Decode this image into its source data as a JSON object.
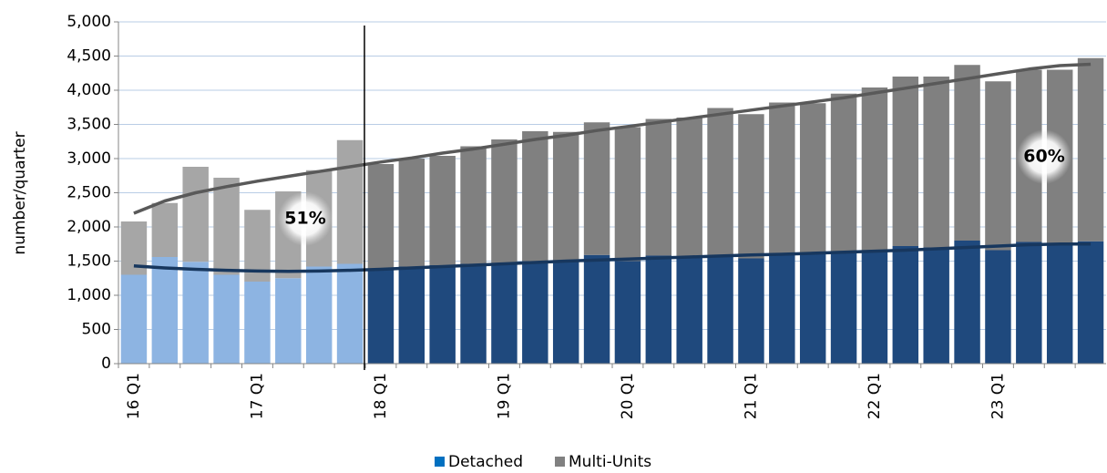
{
  "chart_data": {
    "type": "bar",
    "stacked": true,
    "y_label": "number/quarter",
    "categories": [
      "16 Q1",
      null,
      null,
      null,
      "17 Q1",
      null,
      null,
      null,
      "18 Q1",
      null,
      null,
      null,
      "19 Q1",
      null,
      null,
      null,
      "20 Q1",
      null,
      null,
      null,
      "21 Q1",
      null,
      null,
      null,
      "22 Q1",
      null,
      null,
      null,
      "23 Q1",
      null,
      null,
      null
    ],
    "series": [
      {
        "name": "Detached",
        "color": "#0070c0",
        "colors": [
          "#8db4e2",
          "#8db4e2",
          "#8db4e2",
          "#8db4e2",
          "#8db4e2",
          "#8db4e2",
          "#8db4e2",
          "#8db4e2",
          "#1f497d",
          "#1f497d",
          "#1f497d",
          "#1f497d",
          "#1f497d",
          "#1f497d",
          "#1f497d",
          "#1f497d",
          "#1f497d",
          "#1f497d",
          "#1f497d",
          "#1f497d",
          "#1f497d",
          "#1f497d",
          "#1f497d",
          "#1f497d",
          "#1f497d",
          "#1f497d",
          "#1f497d",
          "#1f497d",
          "#1f497d",
          "#1f497d",
          "#1f497d",
          "#1f497d"
        ],
        "values": [
          1300,
          1560,
          1490,
          1300,
          1200,
          1250,
          1420,
          1460,
          1380,
          1420,
          1440,
          1460,
          1470,
          1500,
          1510,
          1590,
          1500,
          1580,
          1560,
          1590,
          1540,
          1600,
          1620,
          1640,
          1650,
          1720,
          1700,
          1800,
          1660,
          1780,
          1750,
          1790
        ]
      },
      {
        "name": "Multi-Units",
        "color": "#808080",
        "colors": [
          "#a6a6a6",
          "#a6a6a6",
          "#a6a6a6",
          "#a6a6a6",
          "#a6a6a6",
          "#a6a6a6",
          "#a6a6a6",
          "#a6a6a6",
          "#808080",
          "#808080",
          "#808080",
          "#808080",
          "#808080",
          "#808080",
          "#808080",
          "#808080",
          "#808080",
          "#808080",
          "#808080",
          "#808080",
          "#808080",
          "#808080",
          "#808080",
          "#808080",
          "#808080",
          "#808080",
          "#808080",
          "#808080",
          "#808080",
          "#808080",
          "#808080",
          "#808080"
        ],
        "values": [
          780,
          790,
          1390,
          1420,
          1050,
          1270,
          1410,
          1810,
          1540,
          1580,
          1600,
          1720,
          1810,
          1900,
          1880,
          1940,
          1960,
          2000,
          2040,
          2150,
          2110,
          2220,
          2190,
          2310,
          2390,
          2480,
          2500,
          2570,
          2470,
          2520,
          2550,
          2680
        ]
      }
    ],
    "trendlines": [
      {
        "color": "#595959",
        "values": [
          2200,
          2380,
          2500,
          2590,
          2670,
          2740,
          2810,
          2880,
          2950,
          3010,
          3080,
          3140,
          3210,
          3280,
          3340,
          3410,
          3470,
          3530,
          3590,
          3650,
          3710,
          3770,
          3830,
          3890,
          3960,
          4030,
          4100,
          4170,
          4240,
          4310,
          4360,
          4380
        ]
      },
      {
        "color": "#17375e",
        "values": [
          1430,
          1400,
          1380,
          1365,
          1355,
          1350,
          1355,
          1365,
          1380,
          1400,
          1420,
          1440,
          1460,
          1480,
          1500,
          1515,
          1530,
          1545,
          1560,
          1575,
          1590,
          1600,
          1615,
          1630,
          1645,
          1660,
          1680,
          1700,
          1720,
          1740,
          1750,
          1750
        ]
      }
    ],
    "annotations": [
      "51%",
      "60%"
    ],
    "ylim": [
      0,
      5000
    ],
    "yticks": [
      0,
      500,
      {
        "value": 1000,
        "label": "1,000"
      },
      {
        "value": 1500,
        "label": "1,500"
      },
      {
        "value": 2000,
        "label": "2,000"
      },
      {
        "value": 2500,
        "label": "2,500"
      },
      {
        "value": 3000,
        "label": "3,000"
      },
      {
        "value": 3500,
        "label": "3,500"
      },
      {
        "value": 4000,
        "label": "4,000"
      },
      {
        "value": 4500,
        "label": "4,500"
      },
      {
        "value": 5000,
        "label": "5,000"
      }
    ],
    "grid": true,
    "legend": "bottom"
  }
}
